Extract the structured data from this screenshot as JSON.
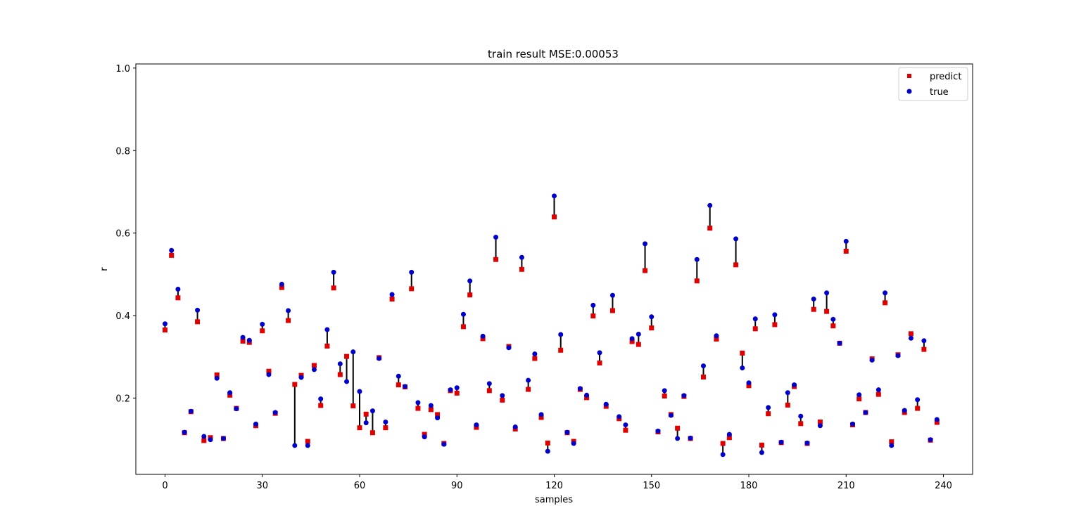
{
  "chart_data": {
    "type": "scatter",
    "title": "train result MSE:0.00053",
    "xlabel": "samples",
    "ylabel": "r",
    "xlim": [
      -9,
      249
    ],
    "ylim": [
      0.015,
      1.01
    ],
    "xticks": [
      0,
      30,
      60,
      90,
      120,
      150,
      180,
      210,
      240
    ],
    "yticks": [
      0.2,
      0.4,
      0.6,
      0.8,
      1.0
    ],
    "ytick_labels": [
      "0.2",
      "0.4",
      "0.6",
      "0.8",
      "1.0"
    ],
    "legend": {
      "placement": "top-right",
      "entries": [
        "predict",
        "true"
      ]
    },
    "colors": {
      "predict": "#e00000",
      "true": "#0000cc",
      "error_line": "#000000"
    },
    "x": [
      0,
      2,
      4,
      6,
      8,
      10,
      12,
      14,
      16,
      18,
      20,
      22,
      24,
      26,
      28,
      30,
      32,
      34,
      36,
      38,
      40,
      42,
      44,
      46,
      48,
      50,
      52,
      54,
      56,
      58,
      60,
      62,
      64,
      66,
      68,
      70,
      72,
      74,
      76,
      78,
      80,
      82,
      84,
      86,
      88,
      90,
      92,
      94,
      96,
      98,
      100,
      102,
      104,
      106,
      108,
      110,
      112,
      114,
      116,
      118,
      120,
      122,
      124,
      126,
      128,
      130,
      132,
      134,
      136,
      138,
      140,
      142,
      144,
      146,
      148,
      150,
      152,
      154,
      156,
      158,
      160,
      162,
      164,
      166,
      168,
      170,
      172,
      174,
      176,
      178,
      180,
      182,
      184,
      186,
      188,
      190,
      192,
      194,
      196,
      198,
      200,
      202,
      204,
      206,
      208,
      210,
      212,
      214,
      216,
      218,
      220,
      222,
      224,
      226,
      228,
      230,
      232,
      234,
      236,
      238
    ],
    "series": [
      {
        "name": "predict",
        "values": [
          0.365,
          0.546,
          0.443,
          0.116,
          0.167,
          0.385,
          0.097,
          0.104,
          0.256,
          0.102,
          0.207,
          0.175,
          0.338,
          0.335,
          0.133,
          0.363,
          0.265,
          0.163,
          0.468,
          0.388,
          0.233,
          0.255,
          0.095,
          0.279,
          0.182,
          0.326,
          0.467,
          0.257,
          0.301,
          0.181,
          0.128,
          0.161,
          0.116,
          0.298,
          0.128,
          0.44,
          0.232,
          0.227,
          0.465,
          0.175,
          0.112,
          0.172,
          0.16,
          0.09,
          0.218,
          0.212,
          0.373,
          0.45,
          0.129,
          0.344,
          0.218,
          0.536,
          0.195,
          0.325,
          0.125,
          0.512,
          0.221,
          0.296,
          0.153,
          0.091,
          0.639,
          0.316,
          0.116,
          0.095,
          0.221,
          0.201,
          0.399,
          0.285,
          0.18,
          0.412,
          0.15,
          0.122,
          0.337,
          0.33,
          0.509,
          0.37,
          0.118,
          0.205,
          0.16,
          0.127,
          0.204,
          0.102,
          0.484,
          0.251,
          0.612,
          0.343,
          0.09,
          0.104,
          0.523,
          0.309,
          0.23,
          0.368,
          0.086,
          0.162,
          0.378,
          0.092,
          0.183,
          0.228,
          0.138,
          0.09,
          0.415,
          0.142,
          0.41,
          0.375,
          0.333,
          0.556,
          0.135,
          0.198,
          0.165,
          0.295,
          0.209,
          0.431,
          0.094,
          0.305,
          0.165,
          0.356,
          0.175,
          0.318,
          0.098,
          0.141
        ]
      },
      {
        "name": "true",
        "values": [
          0.38,
          0.558,
          0.464,
          0.117,
          0.168,
          0.413,
          0.107,
          0.099,
          0.248,
          0.102,
          0.213,
          0.174,
          0.347,
          0.34,
          0.137,
          0.379,
          0.257,
          0.165,
          0.476,
          0.412,
          0.085,
          0.25,
          0.085,
          0.269,
          0.198,
          0.366,
          0.505,
          0.283,
          0.24,
          0.312,
          0.216,
          0.14,
          0.169,
          0.296,
          0.142,
          0.451,
          0.253,
          0.228,
          0.505,
          0.189,
          0.106,
          0.182,
          0.152,
          0.088,
          0.22,
          0.225,
          0.403,
          0.484,
          0.135,
          0.35,
          0.235,
          0.59,
          0.206,
          0.322,
          0.13,
          0.541,
          0.243,
          0.307,
          0.16,
          0.071,
          0.69,
          0.354,
          0.117,
          0.09,
          0.223,
          0.207,
          0.425,
          0.31,
          0.185,
          0.449,
          0.155,
          0.135,
          0.344,
          0.355,
          0.574,
          0.397,
          0.12,
          0.218,
          0.158,
          0.102,
          0.206,
          0.103,
          0.536,
          0.278,
          0.667,
          0.351,
          0.063,
          0.112,
          0.586,
          0.273,
          0.237,
          0.392,
          0.068,
          0.177,
          0.402,
          0.093,
          0.213,
          0.232,
          0.156,
          0.091,
          0.44,
          0.133,
          0.455,
          0.391,
          0.333,
          0.58,
          0.137,
          0.208,
          0.165,
          0.292,
          0.22,
          0.455,
          0.085,
          0.303,
          0.17,
          0.345,
          0.196,
          0.339,
          0.099,
          0.148
        ]
      }
    ]
  }
}
